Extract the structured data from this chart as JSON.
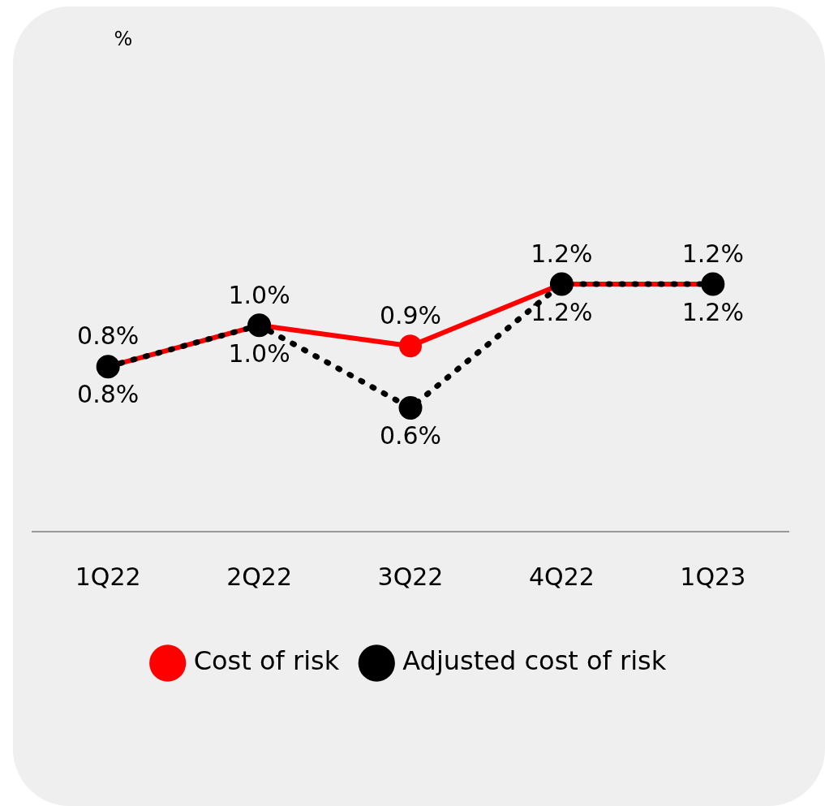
{
  "chart_data": {
    "type": "line",
    "annotations": [
      "%"
    ],
    "categories": [
      "1Q22",
      "2Q22",
      "3Q22",
      "4Q22",
      "1Q23"
    ],
    "series": [
      {
        "name": "Cost of risk",
        "color": "#ff0000",
        "line_style": "solid",
        "values": [
          0.8,
          1.0,
          0.9,
          1.2,
          1.2
        ],
        "value_labels": [
          "0.8%",
          "1.0%",
          "0.9%",
          "1.2%",
          "1.2%"
        ]
      },
      {
        "name": "Adjusted cost of risk",
        "color": "#000000",
        "line_style": "dotted",
        "values": [
          0.8,
          1.0,
          0.6,
          1.2,
          1.2
        ],
        "value_labels": [
          "0.8%",
          "1.0%",
          "0.6%",
          "1.2%",
          "1.2%"
        ]
      }
    ],
    "marker": "circle",
    "grid": false,
    "legend": "bottom"
  }
}
